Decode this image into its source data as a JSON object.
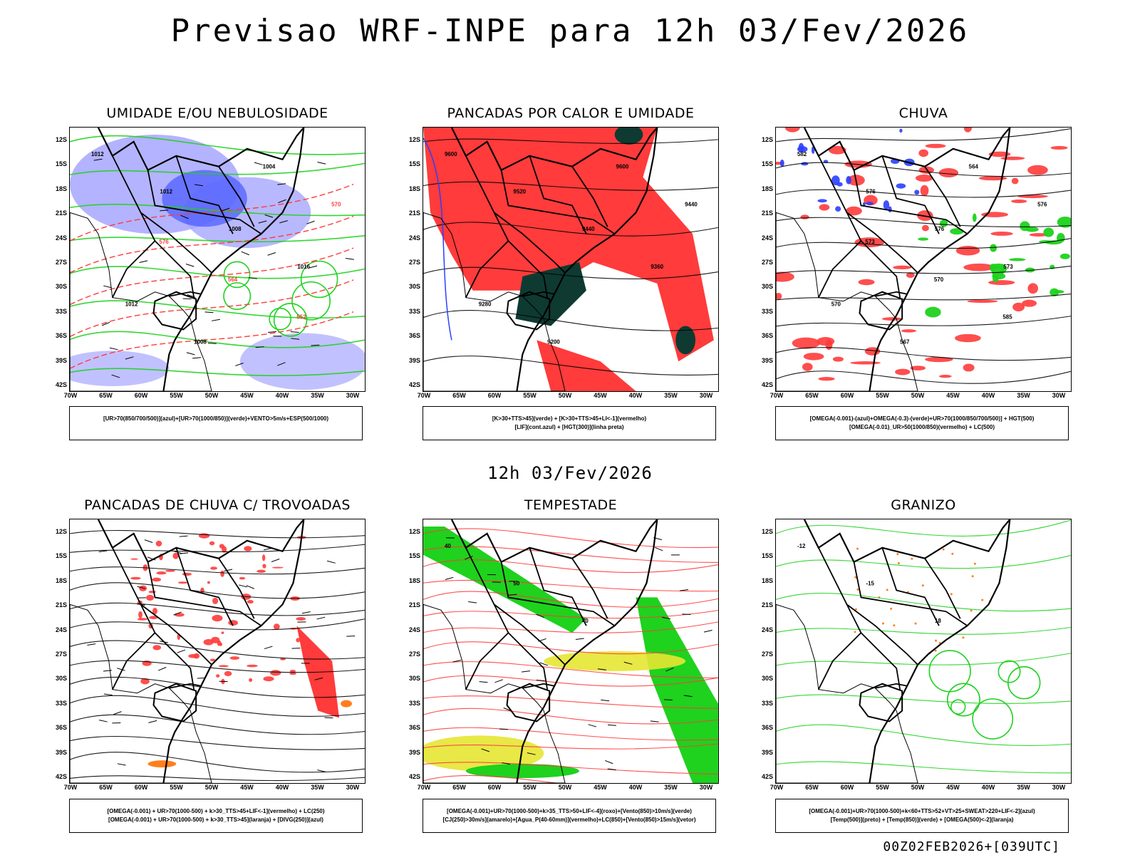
{
  "header": {
    "title": "Previsao WRF-INPE  para 12h 03/Fev/2026"
  },
  "middle_title": "12h 03/Fev/2026",
  "footer_text": "00Z02FEB2026+[039UTC]",
  "axes": {
    "lat_labels": [
      "12S",
      "15S",
      "18S",
      "21S",
      "24S",
      "27S",
      "30S",
      "33S",
      "36S",
      "39S",
      "42S"
    ],
    "lon_labels": [
      "70W",
      "65W",
      "60W",
      "55W",
      "50W",
      "45W",
      "40W",
      "35W",
      "30W"
    ]
  },
  "colors": {
    "red": "#ff3b3b",
    "green": "#1ed21e",
    "blue": "#2a3fff",
    "lilac": "#a6a6ff",
    "darkgreen": "#0e3a32",
    "yellow": "#e6e632",
    "orange": "#ff7f1e"
  },
  "panels": [
    {
      "title": "UMIDADE E/OU NEBULOSIDADE",
      "legend": [
        "[UR>70(850/700/500)](azul)+[UR>70(1000/850)](verde)+VENTO>5m/s+ESP(500/1000)"
      ],
      "map_labels": [
        "1012",
        "1012",
        "1008",
        "1016",
        "1012",
        "1008",
        "1004",
        "570",
        "576",
        "564",
        "552"
      ]
    },
    {
      "title": "PANCADAS POR CALOR E UMIDADE",
      "legend": [
        "[K>30+TTS>45](verde) + [K>30+TTS>45+LI<-1](vermelho)",
        "[LIF](cont.azul) + [HGT(300)](linha preta)"
      ],
      "map_labels": [
        "9600",
        "9520",
        "9440",
        "9360",
        "9280",
        "9200",
        "9600",
        "9440"
      ]
    },
    {
      "title": "CHUVA",
      "legend": [
        "[OMEGA(-0.001)-(azul)+OMEGA(-0.3)-(verde)+UR>70(1000/850/700/500)] + HGT(500)",
        "[OMEGA(-0.01)_UR>50(1000/850)(vermelho) + LC(500)"
      ],
      "map_labels": [
        "582",
        "576",
        "576",
        "573",
        "570",
        "567",
        "564",
        "576",
        "573",
        "570",
        "585"
      ]
    },
    {
      "title": "PANCADAS DE CHUVA C/ TROVOADAS",
      "legend": [
        "[OMEGA(-0.001) + UR>70(1000-500) + k>30_TTS>45+LIF<-1](vermelho) + LC(250)",
        "[OMEGA(-0.001) + UR>70(1000-500) + k>30_TTS>45](laranja) + [DIVG(250)](azul)"
      ],
      "map_labels": []
    },
    {
      "title": "TEMPESTADE",
      "legend": [
        "[OMEGA(-0.001)+UR>70(1000-500)+k>35_TTS>50+LIF<-4](roxo)+[Vento(850)>10m/s](verde)",
        "[CJ(250)>30m/s](amarelo)+[Agua_P(40-60mm)](vermelho)+LC(850)+[Vento(850)>15m/s](vetor)"
      ],
      "map_labels": [
        "40",
        "50",
        "40"
      ]
    },
    {
      "title": "GRANIZO",
      "legend": [
        "[OMEGA(-0.001)+UR>70(1000-500)+k<60+TTS>52+VT>25+SWEAT>220+LIF<-2](azul)",
        "[Temp(500)](preto) + [Temp(850)](verde) + [OMEGA(500)<-2](laranja)"
      ],
      "map_labels": [
        "-12",
        "-15",
        "18"
      ]
    }
  ]
}
